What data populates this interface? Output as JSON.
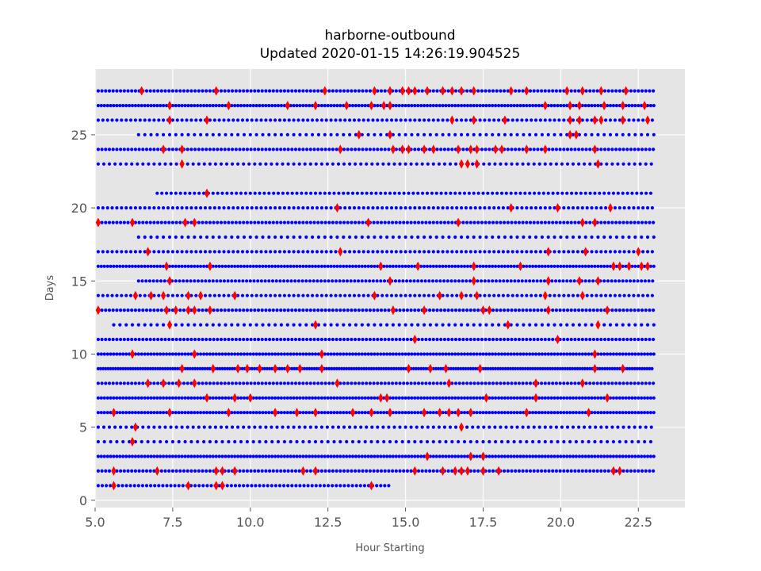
{
  "chart_data": {
    "type": "scatter",
    "title": "harborne-outbound",
    "subtitle": "Updated 2020-01-15 14:26:19.904525",
    "xlabel": "Hour Starting",
    "ylabel": "Days",
    "xlim": [
      5.0,
      24.0
    ],
    "ylim": [
      -0.5,
      29.5
    ],
    "xticks": [
      5.0,
      7.5,
      10.0,
      12.5,
      15.0,
      17.5,
      20.0,
      22.5
    ],
    "xtick_labels": [
      "5.0",
      "7.5",
      "10.0",
      "12.5",
      "15.0",
      "17.5",
      "20.0",
      "22.5"
    ],
    "yticks": [
      0,
      5,
      10,
      15,
      20,
      25
    ],
    "ytick_labels": [
      "0",
      "5",
      "10",
      "15",
      "20",
      "25"
    ],
    "grid": true,
    "background": "#e5e5e5",
    "grid_color": "#ffffff",
    "series": [
      {
        "marker": "circle",
        "color": "#0000ff",
        "rows": [
          {
            "day": 1,
            "start": 5.1,
            "end": 14.5,
            "step": 0.13
          },
          {
            "day": 2,
            "start": 5.1,
            "end": 23.0,
            "step": 0.12
          },
          {
            "day": 3,
            "start": 5.1,
            "end": 23.0,
            "step": 0.1
          },
          {
            "day": 4,
            "start": 5.1,
            "end": 23.0,
            "step": 0.2
          },
          {
            "day": 5,
            "start": 5.1,
            "end": 23.0,
            "step": 0.18
          },
          {
            "day": 6,
            "start": 5.1,
            "end": 23.0,
            "step": 0.1
          },
          {
            "day": 7,
            "start": 5.1,
            "end": 23.0,
            "step": 0.1
          },
          {
            "day": 8,
            "start": 5.1,
            "end": 23.0,
            "step": 0.12
          },
          {
            "day": 9,
            "start": 5.1,
            "end": 23.0,
            "step": 0.08
          },
          {
            "day": 10,
            "start": 5.1,
            "end": 23.0,
            "step": 0.1
          },
          {
            "day": 11,
            "start": 5.1,
            "end": 23.0,
            "step": 0.12
          },
          {
            "day": 12,
            "start": 5.6,
            "end": 23.0,
            "step": 0.2
          },
          {
            "day": 13,
            "start": 5.1,
            "end": 23.0,
            "step": 0.12
          },
          {
            "day": 14,
            "start": 5.1,
            "end": 23.0,
            "step": 0.15
          },
          {
            "day": 15,
            "start": 6.4,
            "end": 23.0,
            "step": 0.12
          },
          {
            "day": 16,
            "start": 5.1,
            "end": 23.0,
            "step": 0.1
          },
          {
            "day": 17,
            "start": 5.1,
            "end": 23.0,
            "step": 0.15
          },
          {
            "day": 18,
            "start": 6.4,
            "end": 23.0,
            "step": 0.2
          },
          {
            "day": 19,
            "start": 5.1,
            "end": 23.0,
            "step": 0.12
          },
          {
            "day": 20,
            "start": 5.1,
            "end": 23.0,
            "step": 0.15
          },
          {
            "day": 21,
            "start": 7.0,
            "end": 23.0,
            "step": 0.15
          },
          {
            "day": 23,
            "start": 5.1,
            "end": 23.0,
            "step": 0.18
          },
          {
            "day": 24,
            "start": 5.1,
            "end": 23.0,
            "step": 0.12
          },
          {
            "day": 25,
            "start": 6.4,
            "end": 23.0,
            "step": 0.2
          },
          {
            "day": 26,
            "start": 5.1,
            "end": 23.0,
            "step": 0.15
          },
          {
            "day": 27,
            "start": 5.1,
            "end": 23.0,
            "step": 0.1
          },
          {
            "day": 28,
            "start": 5.1,
            "end": 23.0,
            "step": 0.12
          }
        ]
      },
      {
        "marker": "diamond",
        "color": "#ff0000",
        "points": [
          [
            5.6,
            1
          ],
          [
            8.0,
            1
          ],
          [
            8.9,
            1
          ],
          [
            9.1,
            1
          ],
          [
            13.9,
            1
          ],
          [
            5.6,
            2
          ],
          [
            7.0,
            2
          ],
          [
            8.9,
            2
          ],
          [
            9.1,
            2
          ],
          [
            9.5,
            2
          ],
          [
            11.7,
            2
          ],
          [
            12.1,
            2
          ],
          [
            15.3,
            2
          ],
          [
            16.2,
            2
          ],
          [
            16.6,
            2
          ],
          [
            16.8,
            2
          ],
          [
            17.0,
            2
          ],
          [
            17.5,
            2
          ],
          [
            18.0,
            2
          ],
          [
            21.7,
            2
          ],
          [
            21.9,
            2
          ],
          [
            17.1,
            3
          ],
          [
            17.5,
            3
          ],
          [
            15.7,
            3
          ],
          [
            6.2,
            4
          ],
          [
            6.3,
            5
          ],
          [
            16.8,
            5
          ],
          [
            5.6,
            6
          ],
          [
            7.4,
            6
          ],
          [
            9.3,
            6
          ],
          [
            10.8,
            6
          ],
          [
            11.5,
            6
          ],
          [
            12.1,
            6
          ],
          [
            13.3,
            6
          ],
          [
            13.9,
            6
          ],
          [
            14.5,
            6
          ],
          [
            15.6,
            6
          ],
          [
            16.1,
            6
          ],
          [
            16.4,
            6
          ],
          [
            16.7,
            6
          ],
          [
            17.1,
            6
          ],
          [
            18.9,
            6
          ],
          [
            20.9,
            6
          ],
          [
            8.6,
            7
          ],
          [
            9.5,
            7
          ],
          [
            10.0,
            7
          ],
          [
            14.2,
            7
          ],
          [
            14.4,
            7
          ],
          [
            17.6,
            7
          ],
          [
            19.2,
            7
          ],
          [
            21.5,
            7
          ],
          [
            6.7,
            8
          ],
          [
            7.2,
            8
          ],
          [
            7.7,
            8
          ],
          [
            8.2,
            8
          ],
          [
            12.8,
            8
          ],
          [
            16.4,
            8
          ],
          [
            19.2,
            8
          ],
          [
            20.7,
            8
          ],
          [
            7.8,
            9
          ],
          [
            8.8,
            9
          ],
          [
            9.6,
            9
          ],
          [
            9.9,
            9
          ],
          [
            10.3,
            9
          ],
          [
            10.8,
            9
          ],
          [
            11.2,
            9
          ],
          [
            11.6,
            9
          ],
          [
            12.3,
            9
          ],
          [
            15.1,
            9
          ],
          [
            15.8,
            9
          ],
          [
            16.3,
            9
          ],
          [
            17.4,
            9
          ],
          [
            21.1,
            9
          ],
          [
            22.0,
            9
          ],
          [
            6.2,
            10
          ],
          [
            8.2,
            10
          ],
          [
            12.3,
            10
          ],
          [
            21.1,
            10
          ],
          [
            15.3,
            11
          ],
          [
            19.9,
            11
          ],
          [
            7.4,
            12
          ],
          [
            12.1,
            12
          ],
          [
            18.3,
            12
          ],
          [
            21.2,
            12
          ],
          [
            5.1,
            13
          ],
          [
            7.3,
            13
          ],
          [
            7.6,
            13
          ],
          [
            8.0,
            13
          ],
          [
            8.2,
            13
          ],
          [
            8.7,
            13
          ],
          [
            14.6,
            13
          ],
          [
            15.6,
            13
          ],
          [
            17.5,
            13
          ],
          [
            17.7,
            13
          ],
          [
            19.6,
            13
          ],
          [
            21.5,
            13
          ],
          [
            6.3,
            14
          ],
          [
            6.8,
            14
          ],
          [
            7.2,
            14
          ],
          [
            8.0,
            14
          ],
          [
            8.4,
            14
          ],
          [
            9.5,
            14
          ],
          [
            14.0,
            14
          ],
          [
            16.1,
            14
          ],
          [
            16.8,
            14
          ],
          [
            17.3,
            14
          ],
          [
            19.5,
            14
          ],
          [
            20.7,
            14
          ],
          [
            7.4,
            15
          ],
          [
            14.5,
            15
          ],
          [
            17.2,
            15
          ],
          [
            19.6,
            15
          ],
          [
            20.6,
            15
          ],
          [
            21.2,
            15
          ],
          [
            7.3,
            16
          ],
          [
            8.7,
            16
          ],
          [
            14.2,
            16
          ],
          [
            15.4,
            16
          ],
          [
            17.2,
            16
          ],
          [
            18.7,
            16
          ],
          [
            21.7,
            16
          ],
          [
            21.9,
            16
          ],
          [
            22.2,
            16
          ],
          [
            22.6,
            16
          ],
          [
            22.8,
            16
          ],
          [
            6.7,
            17
          ],
          [
            12.9,
            17
          ],
          [
            19.6,
            17
          ],
          [
            20.8,
            17
          ],
          [
            22.5,
            17
          ],
          [
            5.1,
            19
          ],
          [
            6.2,
            19
          ],
          [
            7.9,
            19
          ],
          [
            8.2,
            19
          ],
          [
            13.8,
            19
          ],
          [
            16.7,
            19
          ],
          [
            20.7,
            19
          ],
          [
            21.1,
            19
          ],
          [
            12.8,
            20
          ],
          [
            18.4,
            20
          ],
          [
            19.9,
            20
          ],
          [
            21.6,
            20
          ],
          [
            8.6,
            21
          ],
          [
            7.8,
            23
          ],
          [
            16.8,
            23
          ],
          [
            17.0,
            23
          ],
          [
            17.3,
            23
          ],
          [
            21.2,
            23
          ],
          [
            7.2,
            24
          ],
          [
            7.8,
            24
          ],
          [
            12.9,
            24
          ],
          [
            14.6,
            24
          ],
          [
            14.9,
            24
          ],
          [
            15.1,
            24
          ],
          [
            15.6,
            24
          ],
          [
            15.9,
            24
          ],
          [
            16.7,
            24
          ],
          [
            17.1,
            24
          ],
          [
            17.3,
            24
          ],
          [
            17.9,
            24
          ],
          [
            18.1,
            24
          ],
          [
            18.9,
            24
          ],
          [
            19.5,
            24
          ],
          [
            21.1,
            24
          ],
          [
            13.5,
            25
          ],
          [
            14.5,
            25
          ],
          [
            20.3,
            25
          ],
          [
            20.5,
            25
          ],
          [
            7.4,
            26
          ],
          [
            8.6,
            26
          ],
          [
            16.5,
            26
          ],
          [
            17.2,
            26
          ],
          [
            18.2,
            26
          ],
          [
            20.3,
            26
          ],
          [
            20.6,
            26
          ],
          [
            21.1,
            26
          ],
          [
            21.3,
            26
          ],
          [
            22.0,
            26
          ],
          [
            22.8,
            26
          ],
          [
            7.4,
            27
          ],
          [
            9.3,
            27
          ],
          [
            11.2,
            27
          ],
          [
            12.1,
            27
          ],
          [
            13.1,
            27
          ],
          [
            13.9,
            27
          ],
          [
            14.3,
            27
          ],
          [
            14.5,
            27
          ],
          [
            19.5,
            27
          ],
          [
            20.3,
            27
          ],
          [
            20.6,
            27
          ],
          [
            21.4,
            27
          ],
          [
            22.0,
            27
          ],
          [
            22.7,
            27
          ],
          [
            6.5,
            28
          ],
          [
            8.9,
            28
          ],
          [
            12.4,
            28
          ],
          [
            14.0,
            28
          ],
          [
            14.5,
            28
          ],
          [
            14.9,
            28
          ],
          [
            15.1,
            28
          ],
          [
            15.3,
            28
          ],
          [
            15.7,
            28
          ],
          [
            16.2,
            28
          ],
          [
            16.5,
            28
          ],
          [
            16.8,
            28
          ],
          [
            17.2,
            28
          ],
          [
            18.4,
            28
          ],
          [
            18.9,
            28
          ],
          [
            20.2,
            28
          ],
          [
            20.7,
            28
          ],
          [
            21.3,
            28
          ],
          [
            22.1,
            28
          ]
        ]
      }
    ]
  }
}
